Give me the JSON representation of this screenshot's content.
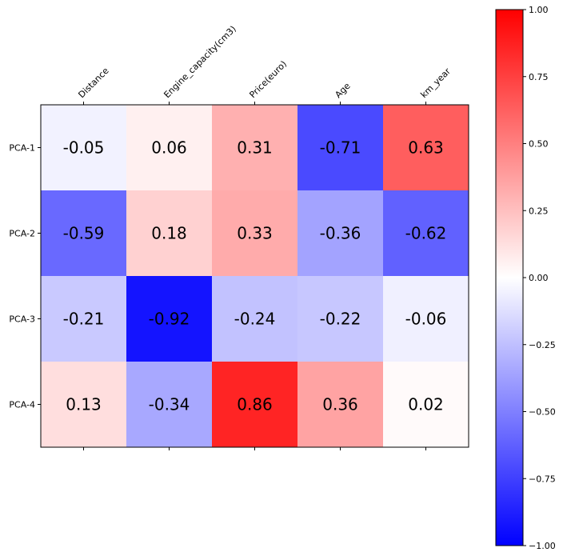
{
  "chart_data": {
    "type": "heatmap",
    "title": "",
    "xlabel": "",
    "ylabel": "",
    "columns": [
      "Distance",
      "Engine_capacity(cm3)",
      "Price(euro)",
      "Age",
      "km_year"
    ],
    "rows": [
      "PCA-1",
      "PCA-2",
      "PCA-3",
      "PCA-4"
    ],
    "values": [
      [
        -0.05,
        0.06,
        0.31,
        -0.71,
        0.63
      ],
      [
        -0.59,
        0.18,
        0.33,
        -0.36,
        -0.62
      ],
      [
        -0.21,
        -0.92,
        -0.24,
        -0.22,
        -0.06
      ],
      [
        0.13,
        -0.34,
        0.86,
        0.36,
        0.02
      ]
    ],
    "value_labels": [
      [
        "-0.05",
        "0.06",
        "0.31",
        "-0.71",
        "0.63"
      ],
      [
        "-0.59",
        "0.18",
        "0.33",
        "-0.36",
        "-0.62"
      ],
      [
        "-0.21",
        "-0.92",
        "-0.24",
        "-0.22",
        "-0.06"
      ],
      [
        "0.13",
        "-0.34",
        "0.86",
        "0.36",
        "0.02"
      ]
    ],
    "colorbar": {
      "colormap": "bwr",
      "range": [
        -1.0,
        1.0
      ],
      "ticks": [
        1.0,
        0.75,
        0.5,
        0.25,
        0.0,
        -0.25,
        -0.5,
        -0.75,
        -1.0
      ],
      "tick_labels": [
        "1.00",
        "0.75",
        "0.50",
        "0.25",
        "0.00",
        "−0.25",
        "−0.50",
        "−0.75",
        "−1.00"
      ],
      "low_color": "#0000ff",
      "mid_color": "#ffffff",
      "high_color": "#ff0000"
    },
    "grid": false,
    "legend": "colorbar-right"
  }
}
